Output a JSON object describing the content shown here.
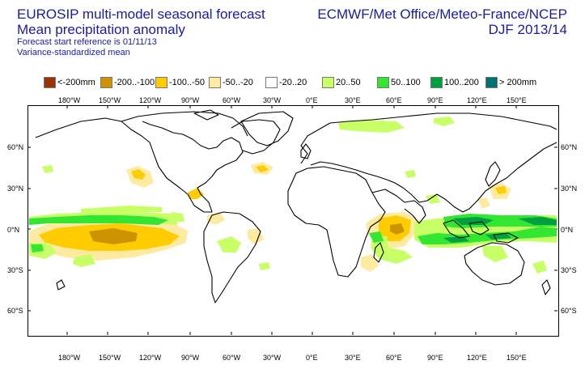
{
  "header": {
    "title_line1": "EUROSIP multi-model seasonal forecast",
    "title_line2": "Mean precipitation anomaly",
    "forecast_ref": "Forecast start reference is 01/11/13",
    "variance_note": "Variance-standardized mean",
    "centres": "ECMWF/Met Office/Meteo-France/NCEP",
    "season": "DJF 2013/14"
  },
  "legend": [
    {
      "label": "<-200mm",
      "color": "#99330a"
    },
    {
      "label": "-200..-100",
      "color": "#cc9400"
    },
    {
      "label": "-100..-50",
      "color": "#fecc00"
    },
    {
      "label": "-50..-20",
      "color": "#feeaa0"
    },
    {
      "label": "-20..20",
      "color": "#ffffff"
    },
    {
      "label": "20..50",
      "color": "#c8ff66"
    },
    {
      "label": "50..100",
      "color": "#33e632"
    },
    {
      "label": "100..200",
      "color": "#00a040"
    },
    {
      "label": "> 200mm",
      "color": "#007070"
    }
  ],
  "axes": {
    "lon_top": [
      "180°W",
      "150°W",
      "120°W",
      "90°W",
      "60°W",
      "30°W",
      "0°E",
      "30°E",
      "60°E",
      "90°E",
      "120°E",
      "150°E"
    ],
    "lon_bottom": [
      "180°W",
      "150°W",
      "120°W",
      "90°W",
      "60°W",
      "30°W",
      "0°E",
      "30°E",
      "60°E",
      "90°E",
      "120°E",
      "150°E"
    ],
    "lat_left": [
      "60°N",
      "30°N",
      "0°N",
      "30°S",
      "60°S"
    ],
    "lat_right": [
      "60°N",
      "30°N",
      "0°N",
      "30°S",
      "60°S"
    ]
  }
}
